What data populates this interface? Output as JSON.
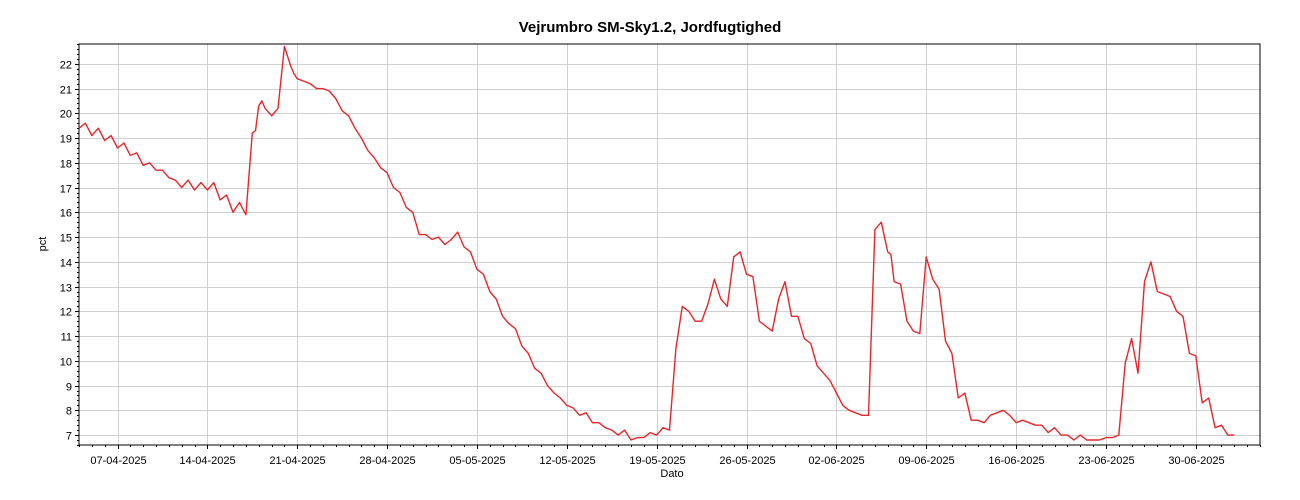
{
  "chart_data": {
    "type": "line",
    "title": "Vejrumbro SM-Sky1.2, Jordfugtighed",
    "xlabel": "Dato",
    "ylabel": "pct",
    "x_range": [
      "2025-04-04",
      "2025-07-05"
    ],
    "ylim": [
      6.6,
      22.8
    ],
    "y_ticks": [
      7,
      8,
      9,
      10,
      11,
      12,
      13,
      14,
      15,
      16,
      17,
      18,
      19,
      20,
      21,
      22
    ],
    "x_ticks": [
      "07-04-2025",
      "14-04-2025",
      "21-04-2025",
      "28-04-2025",
      "05-05-2025",
      "12-05-2025",
      "19-05-2025",
      "26-05-2025",
      "02-06-2025",
      "09-06-2025",
      "16-06-2025",
      "23-06-2025",
      "30-06-2025"
    ],
    "grid": true,
    "line_color": "#e8262a",
    "x": [
      "2025-04-04T00:00",
      "2025-04-04T12:00",
      "2025-04-05T00:00",
      "2025-04-05T12:00",
      "2025-04-06T00:00",
      "2025-04-06T12:00",
      "2025-04-07T00:00",
      "2025-04-07T12:00",
      "2025-04-08T00:00",
      "2025-04-08T12:00",
      "2025-04-09T00:00",
      "2025-04-09T12:00",
      "2025-04-10T00:00",
      "2025-04-10T12:00",
      "2025-04-11T00:00",
      "2025-04-11T12:00",
      "2025-04-12T00:00",
      "2025-04-12T12:00",
      "2025-04-13T00:00",
      "2025-04-13T12:00",
      "2025-04-14T00:00",
      "2025-04-14T12:00",
      "2025-04-15T00:00",
      "2025-04-15T12:00",
      "2025-04-16T00:00",
      "2025-04-16T12:00",
      "2025-04-17T00:00",
      "2025-04-17T12:00",
      "2025-04-17T18:00",
      "2025-04-18T00:00",
      "2025-04-18T06:00",
      "2025-04-18T12:00",
      "2025-04-19T00:00",
      "2025-04-19T12:00",
      "2025-04-20T00:00",
      "2025-04-20T12:00",
      "2025-04-20T18:00",
      "2025-04-21T00:00",
      "2025-04-21T12:00",
      "2025-04-22T00:00",
      "2025-04-22T12:00",
      "2025-04-23T00:00",
      "2025-04-23T12:00",
      "2025-04-24T00:00",
      "2025-04-24T12:00",
      "2025-04-25T00:00",
      "2025-04-25T12:00",
      "2025-04-26T00:00",
      "2025-04-26T12:00",
      "2025-04-27T00:00",
      "2025-04-27T12:00",
      "2025-04-28T00:00",
      "2025-04-28T12:00",
      "2025-04-29T00:00",
      "2025-04-29T12:00",
      "2025-04-30T00:00",
      "2025-04-30T12:00",
      "2025-05-01T00:00",
      "2025-05-01T12:00",
      "2025-05-02T00:00",
      "2025-05-02T12:00",
      "2025-05-03T00:00",
      "2025-05-03T12:00",
      "2025-05-04T00:00",
      "2025-05-04T12:00",
      "2025-05-05T00:00",
      "2025-05-05T12:00",
      "2025-05-06T00:00",
      "2025-05-06T12:00",
      "2025-05-07T00:00",
      "2025-05-07T12:00",
      "2025-05-08T00:00",
      "2025-05-08T12:00",
      "2025-05-09T00:00",
      "2025-05-09T12:00",
      "2025-05-10T00:00",
      "2025-05-10T12:00",
      "2025-05-11T00:00",
      "2025-05-11T12:00",
      "2025-05-12T00:00",
      "2025-05-12T12:00",
      "2025-05-13T00:00",
      "2025-05-13T12:00",
      "2025-05-14T00:00",
      "2025-05-14T12:00",
      "2025-05-15T00:00",
      "2025-05-15T12:00",
      "2025-05-16T00:00",
      "2025-05-16T12:00",
      "2025-05-17T00:00",
      "2025-05-17T12:00",
      "2025-05-18T00:00",
      "2025-05-18T12:00",
      "2025-05-19T00:00",
      "2025-05-19T12:00",
      "2025-05-20T00:00",
      "2025-05-20T12:00",
      "2025-05-21T00:00",
      "2025-05-21T12:00",
      "2025-05-22T00:00",
      "2025-05-22T12:00",
      "2025-05-23T00:00",
      "2025-05-23T12:00",
      "2025-05-24T00:00",
      "2025-05-24T12:00",
      "2025-05-25T00:00",
      "2025-05-25T12:00",
      "2025-05-26T00:00",
      "2025-05-26T12:00",
      "2025-05-27T00:00",
      "2025-05-27T12:00",
      "2025-05-28T00:00",
      "2025-05-28T12:00",
      "2025-05-29T00:00",
      "2025-05-29T12:00",
      "2025-05-30T00:00",
      "2025-05-30T12:00",
      "2025-05-31T00:00",
      "2025-05-31T12:00",
      "2025-06-01T00:00",
      "2025-06-01T12:00",
      "2025-06-02T00:00",
      "2025-06-02T12:00",
      "2025-06-03T00:00",
      "2025-06-03T12:00",
      "2025-06-04T00:00",
      "2025-06-04T12:00",
      "2025-06-05T00:00",
      "2025-06-05T12:00",
      "2025-06-06T00:00",
      "2025-06-06T06:00",
      "2025-06-06T12:00",
      "2025-06-07T00:00",
      "2025-06-07T12:00",
      "2025-06-08T00:00",
      "2025-06-08T12:00",
      "2025-06-09T00:00",
      "2025-06-09T12:00",
      "2025-06-10T00:00",
      "2025-06-10T12:00",
      "2025-06-11T00:00",
      "2025-06-11T12:00",
      "2025-06-12T00:00",
      "2025-06-12T12:00",
      "2025-06-13T00:00",
      "2025-06-13T12:00",
      "2025-06-14T00:00",
      "2025-06-14T12:00",
      "2025-06-15T00:00",
      "2025-06-15T12:00",
      "2025-06-16T00:00",
      "2025-06-16T12:00",
      "2025-06-17T00:00",
      "2025-06-17T12:00",
      "2025-06-18T00:00",
      "2025-06-18T12:00",
      "2025-06-19T00:00",
      "2025-06-19T12:00",
      "2025-06-20T00:00",
      "2025-06-20T12:00",
      "2025-06-21T00:00",
      "2025-06-21T12:00",
      "2025-06-22T00:00",
      "2025-06-22T12:00",
      "2025-06-23T00:00",
      "2025-06-23T12:00",
      "2025-06-24T00:00",
      "2025-06-24T12:00",
      "2025-06-25T00:00",
      "2025-06-25T12:00",
      "2025-06-26T00:00",
      "2025-06-26T12:00",
      "2025-06-27T00:00",
      "2025-06-27T12:00",
      "2025-06-28T00:00",
      "2025-06-28T12:00",
      "2025-06-29T00:00",
      "2025-06-29T12:00",
      "2025-06-30T00:00",
      "2025-06-30T12:00",
      "2025-07-01T00:00",
      "2025-07-01T12:00",
      "2025-07-02T00:00",
      "2025-07-02T12:00",
      "2025-07-03T00:00"
    ],
    "values": [
      19.4,
      19.6,
      19.1,
      19.4,
      18.9,
      19.1,
      18.6,
      18.8,
      18.3,
      18.4,
      17.9,
      18.0,
      17.7,
      17.7,
      17.4,
      17.3,
      17.0,
      17.3,
      16.9,
      17.2,
      16.9,
      17.2,
      16.5,
      16.7,
      16.0,
      16.4,
      15.9,
      19.2,
      19.3,
      20.3,
      20.5,
      20.2,
      19.9,
      20.2,
      22.7,
      21.9,
      21.6,
      21.4,
      21.3,
      21.2,
      21.0,
      21.0,
      20.9,
      20.6,
      20.1,
      19.9,
      19.4,
      19.0,
      18.5,
      18.2,
      17.8,
      17.6,
      17.0,
      16.8,
      16.2,
      16.0,
      15.1,
      15.1,
      14.9,
      15.0,
      14.7,
      14.9,
      15.2,
      14.6,
      14.4,
      13.7,
      13.5,
      12.8,
      12.5,
      11.8,
      11.5,
      11.3,
      10.6,
      10.3,
      9.7,
      9.5,
      9.0,
      8.7,
      8.5,
      8.2,
      8.1,
      7.8,
      7.9,
      7.5,
      7.5,
      7.3,
      7.2,
      7.0,
      7.2,
      6.8,
      6.9,
      6.9,
      7.1,
      7.0,
      7.3,
      7.2,
      10.5,
      12.2,
      12.0,
      11.6,
      11.6,
      12.3,
      13.3,
      12.5,
      12.2,
      14.2,
      14.4,
      13.5,
      13.4,
      11.6,
      11.4,
      11.2,
      12.5,
      13.2,
      11.8,
      11.8,
      10.9,
      10.7,
      9.8,
      9.5,
      9.2,
      8.7,
      8.2,
      8.0,
      7.9,
      7.8,
      7.8,
      15.3,
      15.6,
      14.4,
      14.3,
      13.2,
      13.1,
      11.6,
      11.2,
      11.1,
      14.2,
      13.3,
      12.9,
      10.8,
      10.3,
      8.5,
      8.7,
      7.6,
      7.6,
      7.5,
      7.8,
      7.9,
      8.0,
      7.8,
      7.5,
      7.6,
      7.5,
      7.4,
      7.4,
      7.1,
      7.3,
      7.0,
      7.0,
      6.8,
      7.0,
      6.8,
      6.8,
      6.8,
      6.9,
      6.9,
      7.0,
      9.9,
      10.9,
      9.5,
      13.2,
      14.0,
      12.8,
      12.7,
      12.6,
      12.0,
      11.8,
      10.3,
      10.2,
      8.3,
      8.5,
      7.3,
      7.4,
      7.0,
      7.0
    ]
  }
}
